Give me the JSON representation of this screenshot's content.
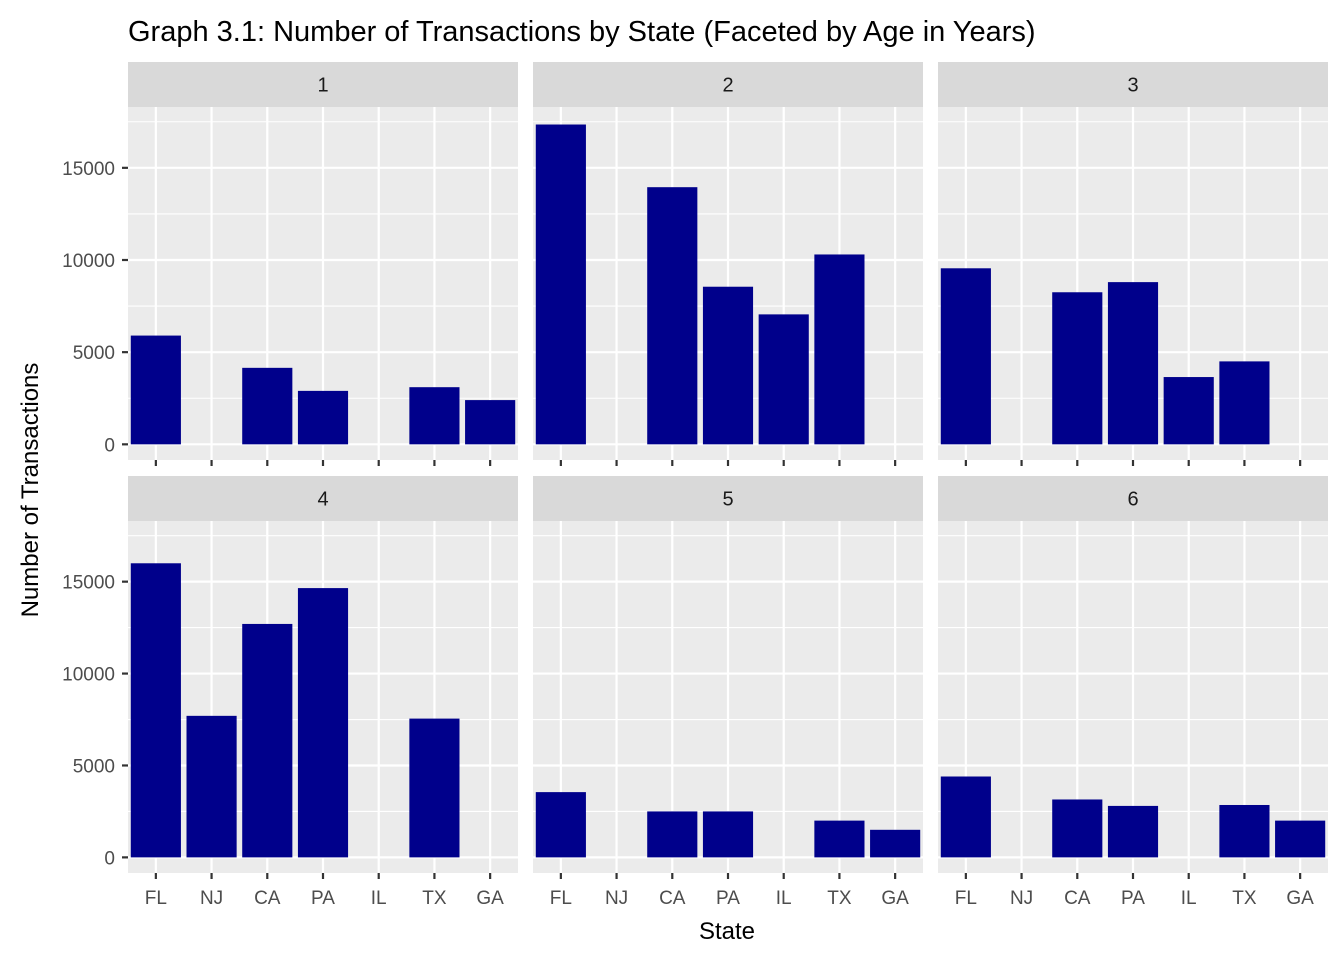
{
  "chart_data": {
    "type": "bar",
    "title": "Graph 3.1: Number of Transactions by State (Faceted by Age in Years)",
    "xlabel": "State",
    "ylabel": "Number of Transactions",
    "categories": [
      "FL",
      "NJ",
      "CA",
      "PA",
      "IL",
      "TX",
      "GA"
    ],
    "y_ticks": [
      0,
      5000,
      10000,
      15000
    ],
    "y_tick_labels": [
      "0",
      "5000",
      "10000",
      "15000"
    ],
    "ylim": [
      -850,
      18300
    ],
    "grid": true,
    "bar_color": "#00008b",
    "panel_background": "#ebebeb",
    "strip_background": "#d9d9d9",
    "facets": [
      {
        "label": "1",
        "values": [
          5900,
          null,
          4150,
          2900,
          null,
          3100,
          2400
        ]
      },
      {
        "label": "2",
        "values": [
          17350,
          null,
          13950,
          8550,
          7050,
          10300,
          null
        ]
      },
      {
        "label": "3",
        "values": [
          9550,
          null,
          8250,
          8800,
          3650,
          4500,
          null
        ]
      },
      {
        "label": "4",
        "values": [
          16000,
          7700,
          12700,
          14650,
          null,
          7550,
          null
        ]
      },
      {
        "label": "5",
        "values": [
          3550,
          null,
          2500,
          2500,
          null,
          2000,
          1500
        ]
      },
      {
        "label": "6",
        "values": [
          4400,
          null,
          3150,
          2800,
          null,
          2850,
          2000
        ]
      }
    ]
  }
}
